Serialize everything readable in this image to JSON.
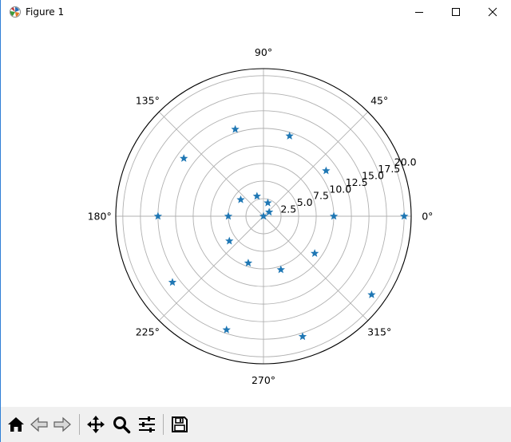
{
  "window": {
    "title": "Figure 1",
    "icons": {
      "app": "matplotlib-icon",
      "minimize": "minimize-icon",
      "maximize": "maximize-icon",
      "close": "close-icon"
    }
  },
  "toolbar": {
    "buttons": [
      {
        "name": "home",
        "icon": "home-icon"
      },
      {
        "name": "back",
        "icon": "back-arrow-icon"
      },
      {
        "name": "forward",
        "icon": "forward-arrow-icon"
      },
      {
        "name": "pan",
        "icon": "pan-icon"
      },
      {
        "name": "zoom",
        "icon": "zoom-icon"
      },
      {
        "name": "configure-subplots",
        "icon": "sliders-icon"
      },
      {
        "name": "save",
        "icon": "save-icon"
      }
    ]
  },
  "chart_data": {
    "type": "scatter",
    "projection": "polar",
    "marker": "star",
    "marker_color": "#1f77b4",
    "rmax": 21,
    "radial_ticks": [
      2.5,
      5.0,
      7.5,
      10.0,
      12.5,
      15.0,
      17.5,
      20.0
    ],
    "radial_tick_labels": [
      "2.5",
      "5.0",
      "7.5",
      "10.0",
      "12.5",
      "15.0",
      "17.5",
      "20.0"
    ],
    "angular_ticks": [
      0,
      45,
      90,
      135,
      180,
      225,
      270,
      315
    ],
    "angular_tick_labels": [
      "0°",
      "45°",
      "90°",
      "135°",
      "180°",
      "225°",
      "270°",
      "315°"
    ],
    "grid": true,
    "theta_deg": [
      0,
      36,
      72,
      108,
      144,
      180,
      216,
      252,
      288,
      324,
      360,
      396,
      432,
      468,
      504,
      540,
      576,
      612,
      648,
      684,
      720
    ],
    "r": [
      0,
      1,
      2,
      3,
      4,
      5,
      6,
      7,
      8,
      9,
      10,
      11,
      12,
      13,
      14,
      15,
      16,
      17,
      18,
      19,
      20
    ]
  }
}
